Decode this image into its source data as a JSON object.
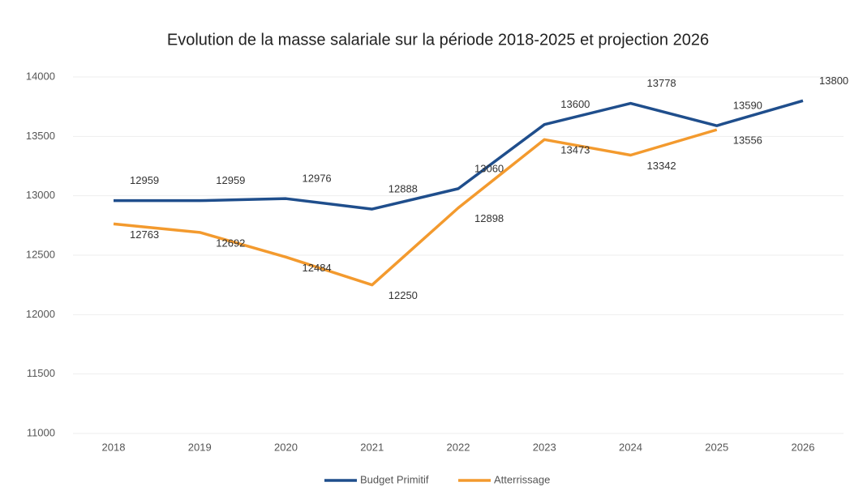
{
  "chart_data": {
    "type": "line",
    "title": "Evolution de la masse salariale sur la période 2018-2025 et projection 2026",
    "categories": [
      "2018",
      "2019",
      "2020",
      "2021",
      "2022",
      "2023",
      "2024",
      "2025",
      "2026"
    ],
    "series": [
      {
        "name": "Budget Primitif",
        "color": "#1f4e8c",
        "values": [
          12959,
          12959,
          12976,
          12888,
          13060,
          13600,
          13778,
          13590,
          13800
        ]
      },
      {
        "name": "Atterrissage",
        "color": "#f39a2e",
        "values": [
          12763,
          12692,
          12484,
          12250,
          12898,
          13473,
          13342,
          13556,
          null
        ]
      }
    ],
    "ylim": [
      11000,
      14000
    ],
    "yticks": [
      11000,
      11500,
      12000,
      12500,
      13000,
      13500,
      14000
    ],
    "grid": true,
    "legend": "bottom"
  }
}
